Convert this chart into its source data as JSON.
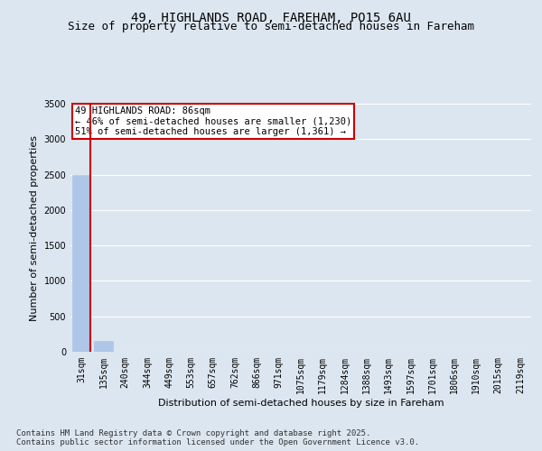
{
  "title_line1": "49, HIGHLANDS ROAD, FAREHAM, PO15 6AU",
  "title_line2": "Size of property relative to semi-detached houses in Fareham",
  "xlabel": "Distribution of semi-detached houses by size in Fareham",
  "ylabel": "Number of semi-detached properties",
  "categories": [
    "31sqm",
    "135sqm",
    "240sqm",
    "344sqm",
    "449sqm",
    "553sqm",
    "657sqm",
    "762sqm",
    "866sqm",
    "971sqm",
    "1075sqm",
    "1179sqm",
    "1284sqm",
    "1388sqm",
    "1493sqm",
    "1597sqm",
    "1701sqm",
    "1806sqm",
    "1910sqm",
    "2015sqm",
    "2119sqm"
  ],
  "values": [
    2500,
    150,
    0,
    0,
    0,
    0,
    0,
    0,
    0,
    0,
    0,
    0,
    0,
    0,
    0,
    0,
    0,
    0,
    0,
    0,
    0
  ],
  "bar_color": "#aec6e8",
  "property_line_color": "#cc0000",
  "property_line_x": 0.42,
  "annotation_text": "49 HIGHLANDS ROAD: 86sqm\n← 46% of semi-detached houses are smaller (1,230)\n51% of semi-detached houses are larger (1,361) →",
  "annotation_box_color": "#cc0000",
  "ylim": [
    0,
    3500
  ],
  "yticks": [
    0,
    500,
    1000,
    1500,
    2000,
    2500,
    3000,
    3500
  ],
  "background_color": "#dce6f0",
  "plot_bg_color": "#dce6f0",
  "grid_color": "#ffffff",
  "footer_text": "Contains HM Land Registry data © Crown copyright and database right 2025.\nContains public sector information licensed under the Open Government Licence v3.0.",
  "title_fontsize": 10,
  "subtitle_fontsize": 9,
  "axis_label_fontsize": 8,
  "tick_fontsize": 7,
  "annotation_fontsize": 7.5,
  "footer_fontsize": 6.5
}
